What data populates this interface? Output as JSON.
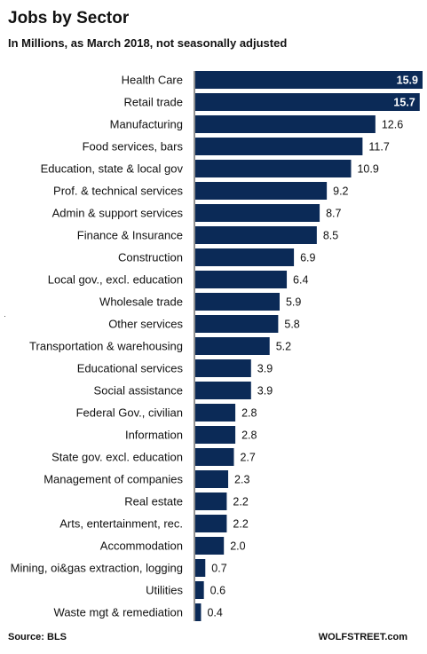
{
  "chart_data": {
    "type": "bar",
    "orientation": "horizontal",
    "title": "Jobs by Sector",
    "subtitle": "In Millions, as March 2018, not seasonally adjusted",
    "categories": [
      "Health Care",
      "Retail trade",
      "Manufacturing",
      "Food services, bars",
      "Education, state & local gov",
      "Prof. & technical services",
      "Admin & support services",
      "Finance & Insurance",
      "Construction",
      "Local gov., excl. education",
      "Wholesale trade",
      "Other services",
      "Transportation & warehousing",
      "Educational services",
      "Social assistance",
      "Federal Gov., civilian",
      "Information",
      "State gov. excl. education",
      "Management of companies",
      "Real estate",
      "Arts, entertainment, rec.",
      "Accommodation",
      "Mining, oi&gas extraction, logging",
      "Utilities",
      "Waste mgt & remediation"
    ],
    "values": [
      15.9,
      15.7,
      12.6,
      11.7,
      10.9,
      9.2,
      8.7,
      8.5,
      6.9,
      6.4,
      5.9,
      5.8,
      5.2,
      3.9,
      3.9,
      2.8,
      2.8,
      2.7,
      2.3,
      2.2,
      2.2,
      2.0,
      0.7,
      0.6,
      0.4
    ],
    "value_labels": [
      "15.9",
      "15.7",
      "12.6",
      "11.7",
      "10.9",
      "9.2",
      "8.7",
      "8.5",
      "6.9",
      "6.4",
      "5.9",
      "5.8",
      "5.2",
      "3.9",
      "3.9",
      "2.8",
      "2.8",
      "2.7",
      "2.3",
      "2.2",
      "2.2",
      "2.0",
      "0.7",
      "0.6",
      "0.4"
    ],
    "labels_inside_bar_count": 2,
    "bar_color": "#0b2a57",
    "inside_label_color": "#ffffff",
    "grid": false,
    "legend": "none"
  },
  "footer": {
    "source": "Source: BLS",
    "brand": "WOLFSTREET.com"
  }
}
